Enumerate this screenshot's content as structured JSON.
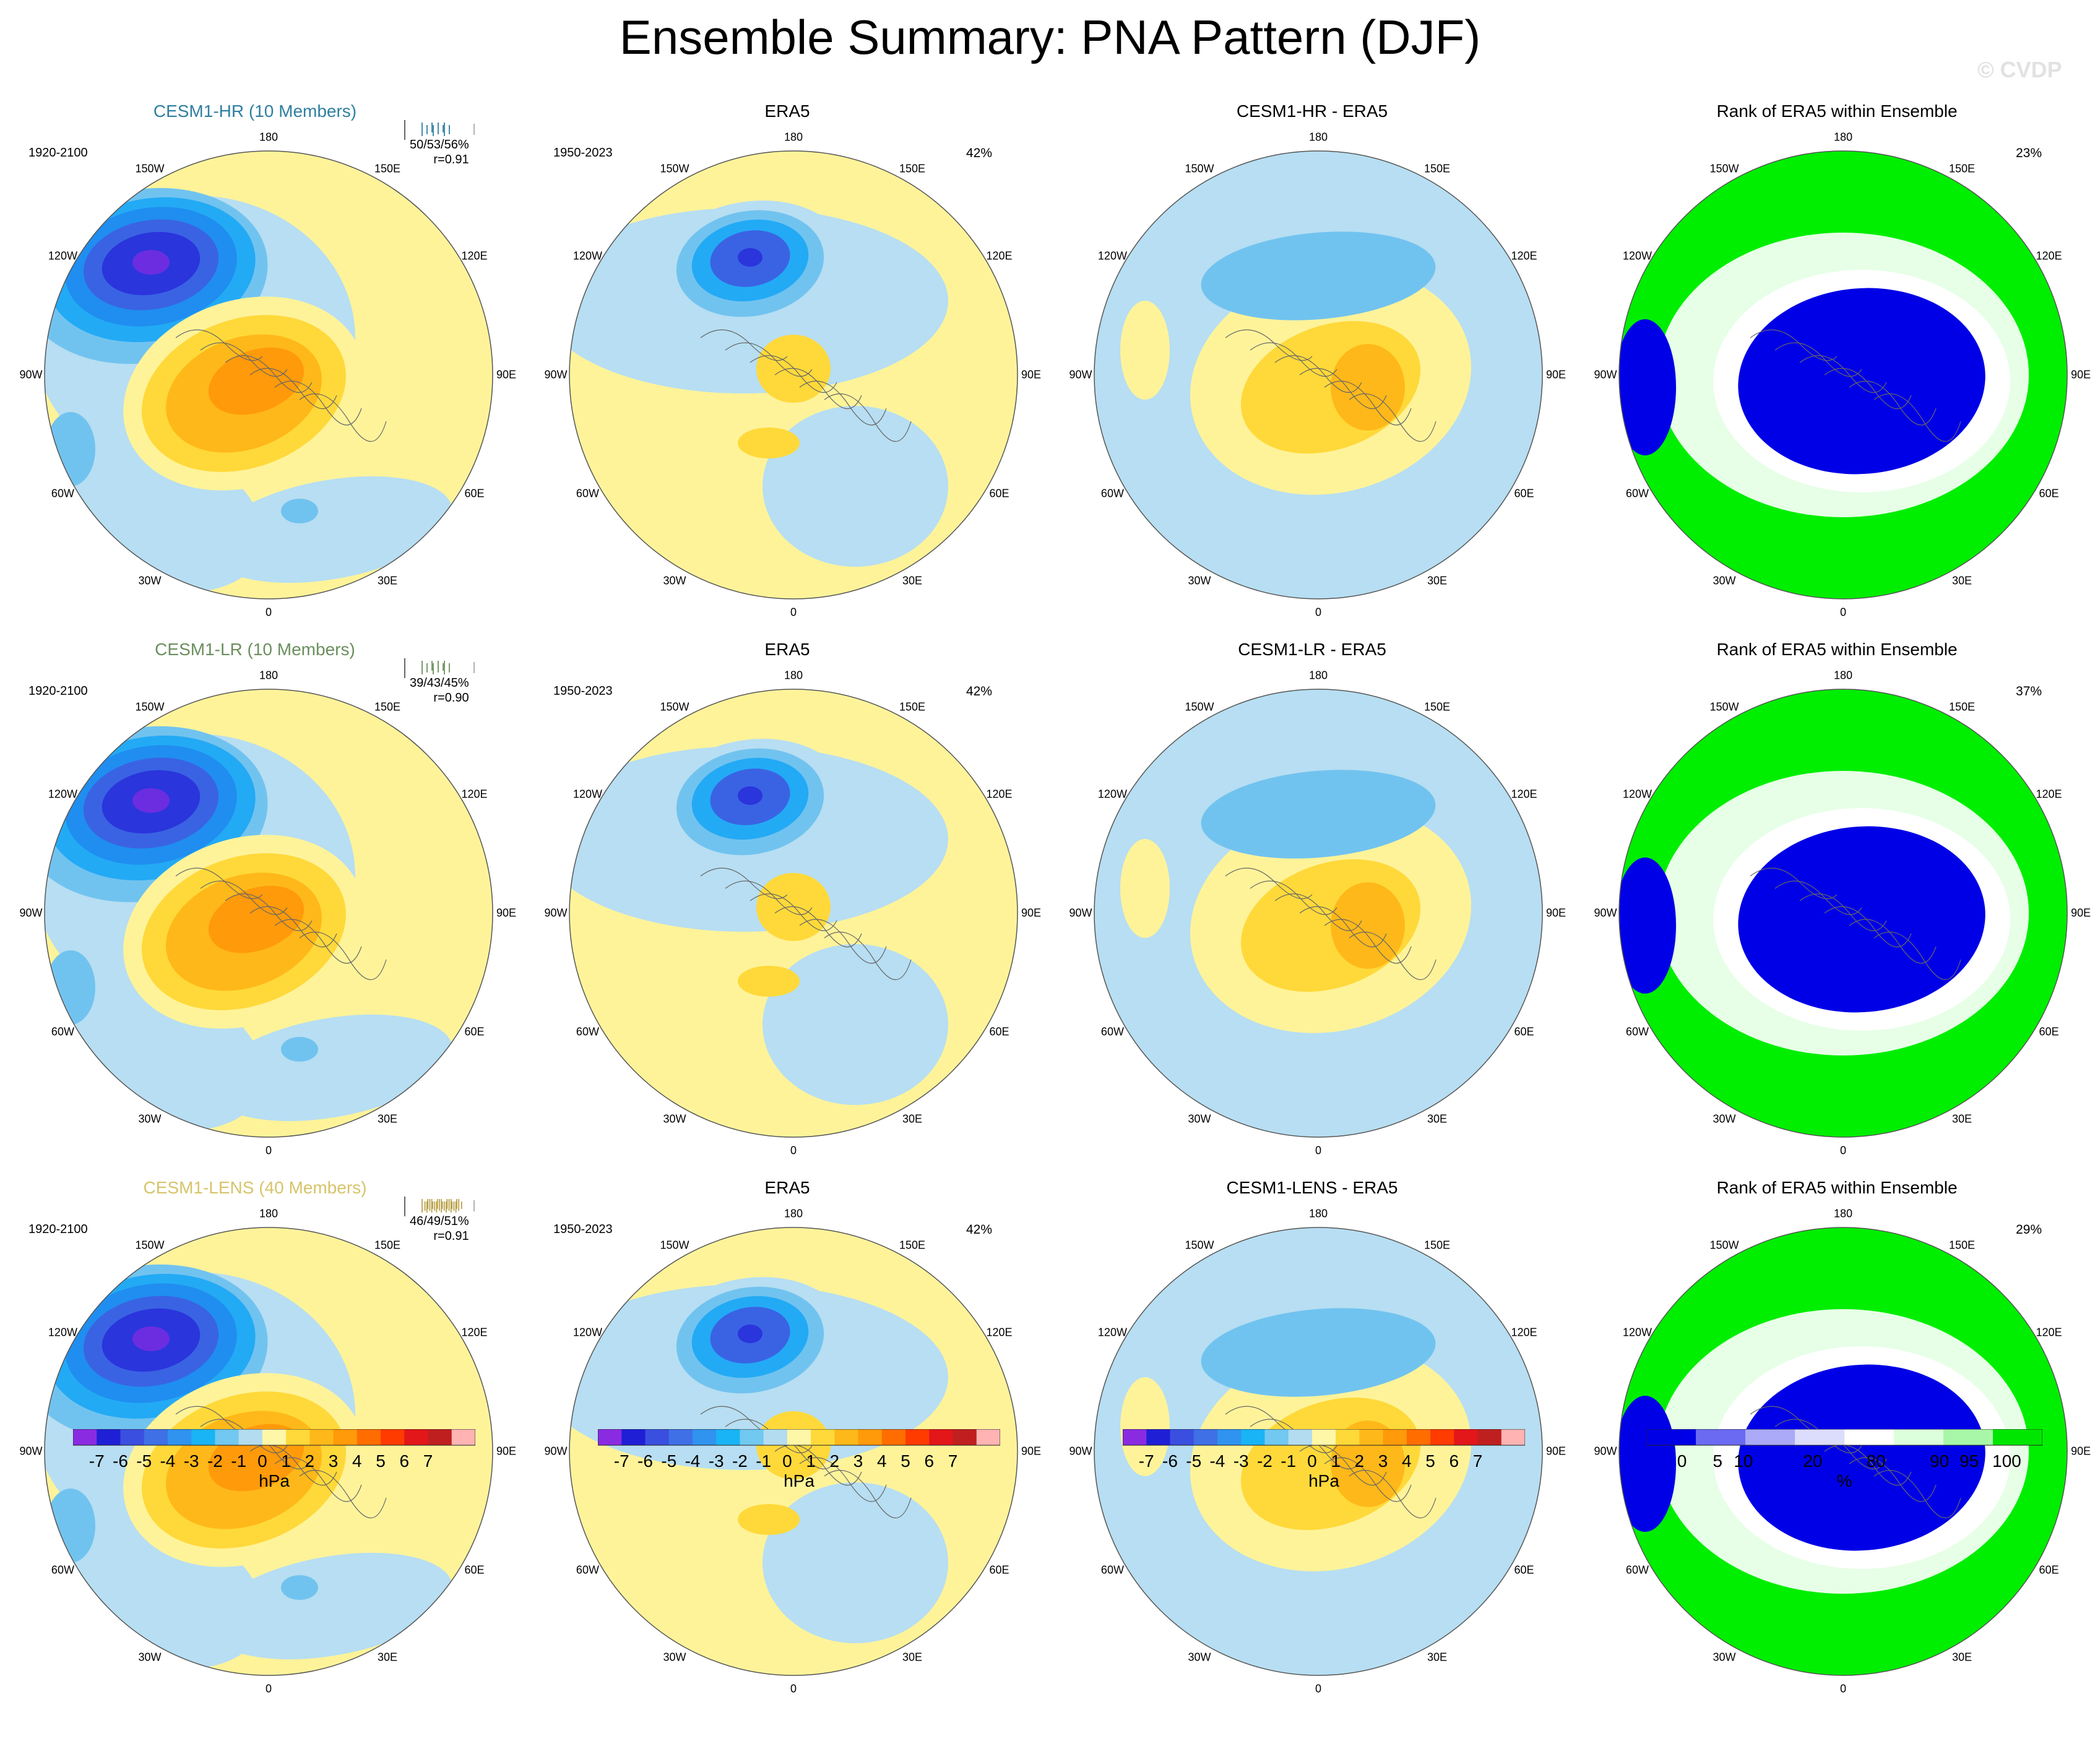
{
  "title": "Ensemble Summary: PNA Pattern (DJF)",
  "watermark": "© CVDP",
  "rows": [
    {
      "model": {
        "title": "CESM1-HR (10 Members)",
        "color": "#2f7fa0",
        "years": "1920-2100",
        "stats": "50/53/56%",
        "r": "r=0.91",
        "tick_color": "#2f7fa0"
      },
      "obs": {
        "title": "ERA5",
        "years": "1950-2023",
        "pct": "42%"
      },
      "diff": {
        "title": "CESM1-HR - ERA5"
      },
      "rank": {
        "title": "Rank of ERA5 within Ensemble",
        "pct": "23%"
      }
    },
    {
      "model": {
        "title": "CESM1-LR (10 Members)",
        "color": "#6b8f5e",
        "years": "1920-2100",
        "stats": "39/43/45%",
        "r": "r=0.90",
        "tick_color": "#6b8f5e"
      },
      "obs": {
        "title": "ERA5",
        "years": "1950-2023",
        "pct": "42%"
      },
      "diff": {
        "title": "CESM1-LR - ERA5"
      },
      "rank": {
        "title": "Rank of ERA5 within Ensemble",
        "pct": "37%"
      }
    },
    {
      "model": {
        "title": "CESM1-LENS (40 Members)",
        "color": "#d7c46a",
        "years": "1920-2100",
        "stats": "46/49/51%",
        "r": "r=0.91",
        "tick_color": "#b9a24a"
      },
      "obs": {
        "title": "ERA5",
        "years": "1950-2023",
        "pct": "42%"
      },
      "diff": {
        "title": "CESM1-LENS - ERA5"
      },
      "rank": {
        "title": "Rank of ERA5 within Ensemble",
        "pct": "29%"
      }
    }
  ],
  "lon_labels": [
    "180",
    "150E",
    "120E",
    "90E",
    "60E",
    "30E",
    "0",
    "30W",
    "60W",
    "90W",
    "120W",
    "150W"
  ],
  "hpa_colorbar": {
    "unit": "hPa",
    "labels": [
      "-7",
      "-6",
      "-5",
      "-4",
      "-3",
      "-2",
      "-1",
      "0",
      "1",
      "2",
      "3",
      "4",
      "5",
      "6",
      "7"
    ],
    "colors": [
      "#8a2be2",
      "#1f1fd6",
      "#3a4fe0",
      "#3f70e6",
      "#2f93ef",
      "#19b4f5",
      "#71c8f0",
      "#b3dcf0",
      "#fff7a8",
      "#ffd93a",
      "#ffb819",
      "#ff9a0a",
      "#ff6d00",
      "#ff3b00",
      "#e3161a",
      "#c01f1f",
      "#ffb3b3"
    ]
  },
  "rank_colorbar": {
    "unit": "%",
    "labels": [
      "0",
      "5",
      "10",
      "20",
      "80",
      "90",
      "95",
      "100"
    ],
    "colors": [
      "#0000e6",
      "#6a6af2",
      "#aaaaf8",
      "#dcdcfc",
      "#ffffff",
      "#dcffdc",
      "#a8f7a8",
      "#00e600"
    ]
  },
  "colors": {
    "pos1": "#fff39a",
    "pos2": "#ffd93a",
    "pos3": "#ffb819",
    "pos4": "#ff9a0a",
    "neg1": "#b7def2",
    "neg2": "#71c3ef",
    "neg3": "#23aaf5",
    "neg4": "#1f8ef0",
    "neg5": "#3a63e3",
    "neg6": "#2a35dc",
    "neg7": "#6c2de0",
    "rank_blue": "#0000e6",
    "rank_green": "#00ee00",
    "rank_light": "#e6ffe6"
  }
}
